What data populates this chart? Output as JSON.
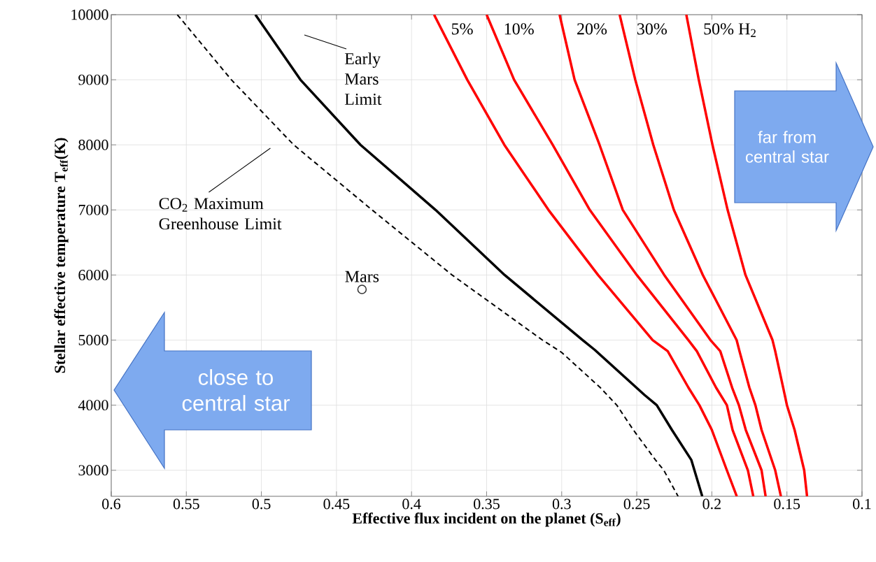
{
  "chart_data": {
    "type": "line",
    "xlabel": "Effective flux incident on the planet (S$_{eff}$)",
    "ylabel": "Stellar effective temperature T$_{eff}$(K)",
    "xlim": [
      0.6,
      0.1
    ],
    "ylim": [
      2600,
      10000
    ],
    "xticks": [
      0.6,
      0.55,
      0.5,
      0.45,
      0.4,
      0.35,
      0.3,
      0.25,
      0.2,
      0.15,
      0.1
    ],
    "yticks": [
      3000,
      4000,
      5000,
      6000,
      7000,
      8000,
      9000,
      10000
    ],
    "grid": true,
    "annotations": [
      "close to central star",
      "far from central star"
    ],
    "series": [
      {
        "name": "Early Mars Limit",
        "color": "#000000",
        "x": [
          0.504,
          0.474,
          0.434,
          0.384,
          0.338,
          0.286,
          0.278,
          0.245,
          0.2367,
          0.2266,
          0.2137,
          0.2064
        ],
        "values": [
          10000,
          9000,
          8000,
          7000,
          6000,
          5000,
          4850,
          4160,
          4000,
          3620,
          3160,
          2600
        ]
      },
      {
        "name": "CO$_{2}$ Maximum Greenhouse Limit",
        "color": "#000000",
        "line_style": "dashed",
        "x": [
          0.556,
          0.52,
          0.4785,
          0.4263,
          0.373,
          0.3128,
          0.3,
          0.2743,
          0.2633,
          0.2523,
          0.2376,
          0.232,
          0.2225
        ],
        "values": [
          10000,
          9000,
          8000,
          7000,
          6000,
          5000,
          4810,
          4270,
          4000,
          3620,
          3160,
          3000,
          2600
        ]
      },
      {
        "name": "5%",
        "color": "#ff0000",
        "x": [
          0.385,
          0.3629,
          0.3382,
          0.3088,
          0.2758,
          0.2394,
          0.2294,
          0.2156,
          0.2083,
          0.2,
          0.19,
          0.1834
        ],
        "values": [
          10000,
          9000,
          8000,
          7000,
          6000,
          5000,
          4830,
          4270,
          4000,
          3620,
          3000,
          2600
        ]
      },
      {
        "name": "10%",
        "color": "#ff0000",
        "x": [
          0.35,
          0.3317,
          0.306,
          0.2813,
          0.25,
          0.2156,
          0.21,
          0.1972,
          0.19,
          0.1862,
          0.176,
          0.1724
        ],
        "values": [
          10000,
          9000,
          8000,
          7000,
          6000,
          5000,
          4830,
          4270,
          4000,
          3620,
          3000,
          2600
        ]
      },
      {
        "name": "20%",
        "color": "#ff0000",
        "x": [
          0.3014,
          0.2914,
          0.2748,
          0.2593,
          0.2317,
          0.2009,
          0.1944,
          0.1865,
          0.182,
          0.1774,
          0.1669,
          0.1642
        ],
        "values": [
          10000,
          9000,
          8000,
          7000,
          6000,
          5000,
          4830,
          4270,
          4000,
          3620,
          3000,
          2600
        ]
      },
      {
        "name": "30%",
        "color": "#ff0000",
        "x": [
          0.2614,
          0.251,
          0.239,
          0.2253,
          0.206,
          0.1835,
          0.1816,
          0.175,
          0.171,
          0.1669,
          0.1578,
          0.154
        ],
        "values": [
          10000,
          9000,
          8000,
          7000,
          6000,
          5000,
          4830,
          4270,
          4000,
          3620,
          3000,
          2600
        ]
      },
      {
        "name": "50% H$_{2}$",
        "color": "#ff0000",
        "x": [
          0.217,
          0.2087,
          0.1996,
          0.1895,
          0.1776,
          0.1596,
          0.1578,
          0.1525,
          0.15,
          0.1449,
          0.1385,
          0.1366
        ],
        "values": [
          10000,
          9000,
          8000,
          7000,
          6000,
          5000,
          4830,
          4270,
          4000,
          3620,
          3000,
          2600
        ]
      },
      {
        "name": "Mars",
        "type": "scatter",
        "marker": "circle",
        "color": "#333333",
        "x": [
          0.433
        ],
        "values": [
          5780
        ]
      }
    ]
  }
}
